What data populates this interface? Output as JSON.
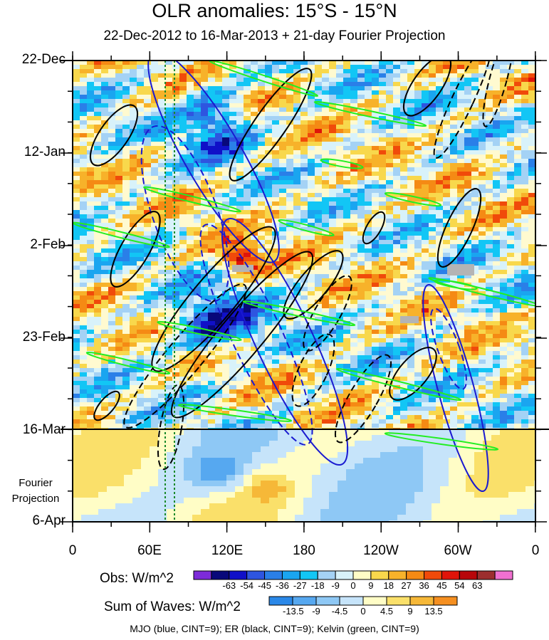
{
  "title": "OLR anomalies: 15°S - 15°N",
  "subtitle": "22-Dec-2012 to 16-Mar-2013 + 21-day Fourier Projection",
  "y_labels": [
    "22-Dec",
    "12-Jan",
    "2-Feb",
    "23-Feb",
    "16-Mar",
    "6-Apr"
  ],
  "fourier_label_1": "Fourier",
  "fourier_label_2": "Projection",
  "x_labels": [
    "0",
    "60E",
    "120E",
    "180",
    "120W",
    "60W",
    "0"
  ],
  "obs_colorbar": {
    "title": "Obs: W/m^2",
    "ticks": [
      "-63",
      "-54",
      "-45",
      "-36",
      "-27",
      "-18",
      "-9",
      "0",
      "9",
      "18",
      "27",
      "36",
      "45",
      "54",
      "63"
    ],
    "colors": [
      "#7d2bd9",
      "#08087a",
      "#1010c8",
      "#2e55e0",
      "#2a7fe8",
      "#1aa5f0",
      "#12c6f5",
      "#a4d2f5",
      "#d8f2fa",
      "#fffdc6",
      "#f8d84c",
      "#f7b22a",
      "#f58a14",
      "#f04a0a",
      "#e0140a",
      "#b8060a",
      "#9c2e2e",
      "#f070d0"
    ]
  },
  "waves_colorbar": {
    "title": "Sum of Waves: W/m^2",
    "ticks": [
      "-13.5",
      "-9",
      "-4.5",
      "0",
      "4.5",
      "9",
      "13.5"
    ],
    "colors": [
      "#2a88e8",
      "#56a8f0",
      "#8ec8f5",
      "#c6e4fa",
      "#fffdc6",
      "#fae06a",
      "#f6b838",
      "#f58f20"
    ]
  },
  "footnote": "MJO (blue, CINT=9); ER (black, CINT=9); Kelvin (green, CINT=9)",
  "chart_data": {
    "type": "heatmap",
    "title": "OLR anomalies: 15°S - 15°N",
    "subtitle": "22-Dec-2012 to 16-Mar-2013 + 21-day Fourier Projection",
    "x_axis": {
      "ticks": [
        "0",
        "60E",
        "120E",
        "180",
        "120W",
        "60W",
        "0"
      ],
      "range_deg": [
        0,
        360
      ]
    },
    "y_axis": {
      "ticks": [
        "22-Dec",
        "12-Jan",
        "2-Feb",
        "23-Feb",
        "16-Mar",
        "6-Apr"
      ],
      "range": [
        "2012-12-22",
        "2013-04-06"
      ],
      "direction": "time increases downward"
    },
    "observed_end": "2013-03-16",
    "projection_days": 21,
    "overlays": [
      {
        "name": "MJO",
        "color": "blue",
        "cint": 9
      },
      {
        "name": "ER",
        "color": "black",
        "cint": 9
      },
      {
        "name": "Kelvin",
        "color": "green",
        "cint": 9
      }
    ],
    "vertical_reference_lines_deg": [
      72,
      78
    ]
  }
}
